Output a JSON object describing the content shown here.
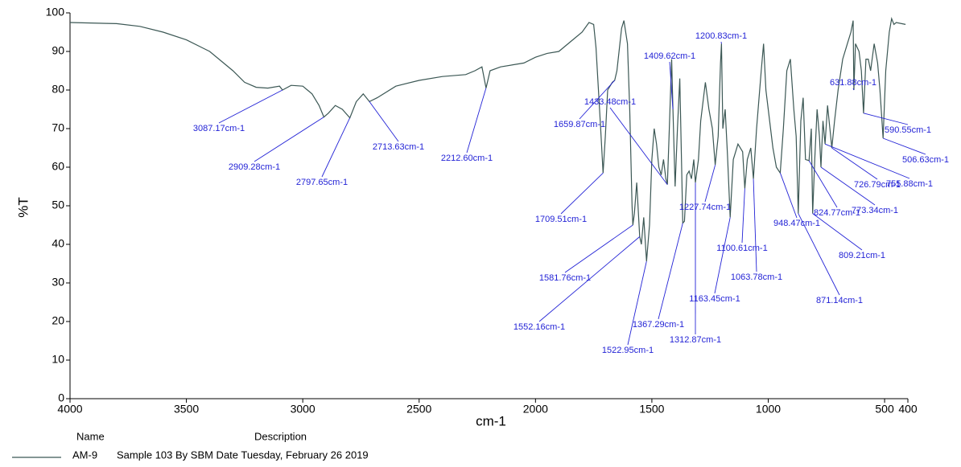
{
  "chart_data": {
    "type": "line",
    "x_label": "cm-1",
    "y_label": "%T",
    "xlim": [
      4000,
      400
    ],
    "ylim": [
      0,
      100
    ],
    "xticks": [
      4000,
      3500,
      3000,
      2500,
      2000,
      1500,
      1000,
      500,
      400
    ],
    "yticks": [
      0,
      10,
      20,
      30,
      40,
      50,
      60,
      70,
      80,
      90,
      100
    ],
    "annotation_color": "#2323d6",
    "legend_headers": [
      "Name",
      "Description"
    ],
    "x": [
      4000,
      3800,
      3700,
      3600,
      3500,
      3400,
      3300,
      3250,
      3200,
      3150,
      3100,
      3087.17,
      3050,
      3000,
      2960,
      2930,
      2909.28,
      2890,
      2860,
      2830,
      2797.65,
      2770,
      2740,
      2713.63,
      2680,
      2600,
      2500,
      2400,
      2300,
      2260,
      2230,
      2212.6,
      2195,
      2150,
      2050,
      2000,
      1950,
      1900,
      1850,
      1800,
      1770,
      1750,
      1740,
      1720,
      1709.51,
      1700,
      1690,
      1670,
      1659.87,
      1650,
      1630,
      1620,
      1605,
      1595,
      1585,
      1581.76,
      1575,
      1565,
      1552.16,
      1545,
      1535,
      1522.95,
      1510,
      1500,
      1490,
      1480,
      1470,
      1460,
      1450,
      1440,
      1433.48,
      1425,
      1415,
      1409.62,
      1400,
      1390,
      1380,
      1372,
      1367.29,
      1360,
      1350,
      1340,
      1330,
      1320,
      1312.87,
      1300,
      1290,
      1270,
      1255,
      1240,
      1227.74,
      1215,
      1205,
      1200.83,
      1195,
      1185,
      1175,
      1163.45,
      1150,
      1130,
      1110,
      1100.61,
      1090,
      1075,
      1063.78,
      1050,
      1030,
      1020,
      1010,
      1000,
      980,
      965,
      948.47,
      935,
      920,
      905,
      890,
      880,
      871.14,
      860,
      850,
      840,
      824.77,
      815,
      809.21,
      800,
      790,
      780,
      773.34,
      765,
      755.88,
      745,
      735,
      726.79,
      715,
      700,
      680,
      660,
      645,
      635,
      631.88,
      625,
      610,
      600,
      590.55,
      580,
      570,
      560,
      545,
      530,
      520,
      506.63,
      495,
      480,
      470,
      460,
      450,
      410
    ],
    "series": [
      {
        "name": "AM-9",
        "description": "Sample 103 By SBM Date Tuesday, February 26 2019",
        "color": "#3b5754",
        "values": [
          97.5,
          97.2,
          96.5,
          95,
          93,
          90,
          85,
          82,
          80.7,
          80.5,
          81,
          80,
          81.2,
          81,
          79,
          76,
          73,
          74,
          76,
          75,
          72.8,
          77,
          79,
          77,
          78,
          81,
          82.5,
          83.5,
          84,
          85,
          86,
          80.5,
          85,
          86,
          87,
          88.5,
          89.5,
          90,
          92.5,
          95,
          97.5,
          97,
          91,
          70,
          58.5,
          68,
          80,
          82,
          82.5,
          85,
          96,
          98,
          92,
          75,
          50,
          45,
          48,
          56,
          42,
          40,
          47,
          35.6,
          45,
          62,
          70,
          66,
          60,
          58,
          62,
          57,
          55.5,
          70,
          88,
          75,
          55,
          70,
          83,
          60,
          45.5,
          46,
          58,
          59,
          57,
          62,
          56,
          62,
          72,
          82,
          75,
          70,
          60.6,
          68,
          87,
          92,
          70,
          75,
          63,
          47,
          62,
          66,
          64,
          54.5,
          62,
          65,
          57,
          70,
          85,
          92,
          80,
          75,
          65,
          60,
          58.5,
          70,
          85,
          88,
          75,
          68,
          48,
          72,
          78,
          62,
          61.7,
          70,
          48,
          62,
          75,
          68,
          60,
          72,
          66,
          76,
          70,
          65,
          72,
          80,
          88,
          92,
          95,
          98,
          80,
          92,
          90,
          85,
          74,
          88,
          88,
          85,
          92,
          87,
          80,
          67.5,
          85,
          95,
          98.5,
          97,
          97.5,
          97
        ]
      }
    ],
    "annotations": [
      {
        "label": "3087.17cm-1",
        "x": 3087.17,
        "y": 80
      },
      {
        "label": "2909.28cm-1",
        "x": 2909.28,
        "y": 73
      },
      {
        "label": "2797.65cm-1",
        "x": 2797.65,
        "y": 72.8
      },
      {
        "label": "2713.63cm-1",
        "x": 2713.63,
        "y": 77
      },
      {
        "label": "2212.60cm-1",
        "x": 2212.6,
        "y": 80.5
      },
      {
        "label": "1659.87cm-1",
        "x": 1659.87,
        "y": 82.5
      },
      {
        "label": "1709.51cm-1",
        "x": 1709.51,
        "y": 58.5
      },
      {
        "label": "1581.76cm-1",
        "x": 1581.76,
        "y": 45
      },
      {
        "label": "1552.16cm-1",
        "x": 1552.16,
        "y": 42
      },
      {
        "label": "1522.95cm-1",
        "x": 1522.95,
        "y": 35.6
      },
      {
        "label": "1433.48cm-1",
        "x": 1433.48,
        "y": 55.5
      },
      {
        "label": "1409.62cm-1",
        "x": 1409.62,
        "y": 75
      },
      {
        "label": "1367.29cm-1",
        "x": 1367.29,
        "y": 45.5
      },
      {
        "label": "1312.87cm-1",
        "x": 1312.87,
        "y": 56
      },
      {
        "label": "1227.74cm-1",
        "x": 1227.74,
        "y": 60.6
      },
      {
        "label": "1200.83cm-1",
        "x": 1200.83,
        "y": 92
      },
      {
        "label": "1163.45cm-1",
        "x": 1163.45,
        "y": 47
      },
      {
        "label": "1100.61cm-1",
        "x": 1100.61,
        "y": 54.5
      },
      {
        "label": "1063.78cm-1",
        "x": 1063.78,
        "y": 57
      },
      {
        "label": "948.47cm-1",
        "x": 948.47,
        "y": 58.5
      },
      {
        "label": "824.77cm-1",
        "x": 824.77,
        "y": 61.7
      },
      {
        "label": "809.21cm-1",
        "x": 809.21,
        "y": 48
      },
      {
        "label": "871.14cm-1",
        "x": 871.14,
        "y": 48
      },
      {
        "label": "773.34cm-1",
        "x": 773.34,
        "y": 60
      },
      {
        "label": "726.79cm-1",
        "x": 726.79,
        "y": 65
      },
      {
        "label": "755.88cm-1",
        "x": 755.88,
        "y": 66
      },
      {
        "label": "631.88cm-1",
        "x": 631.88,
        "y": 80
      },
      {
        "label": "590.55cm-1",
        "x": 590.55,
        "y": 74
      },
      {
        "label": "506.63cm-1",
        "x": 506.63,
        "y": 67.5
      }
    ]
  }
}
